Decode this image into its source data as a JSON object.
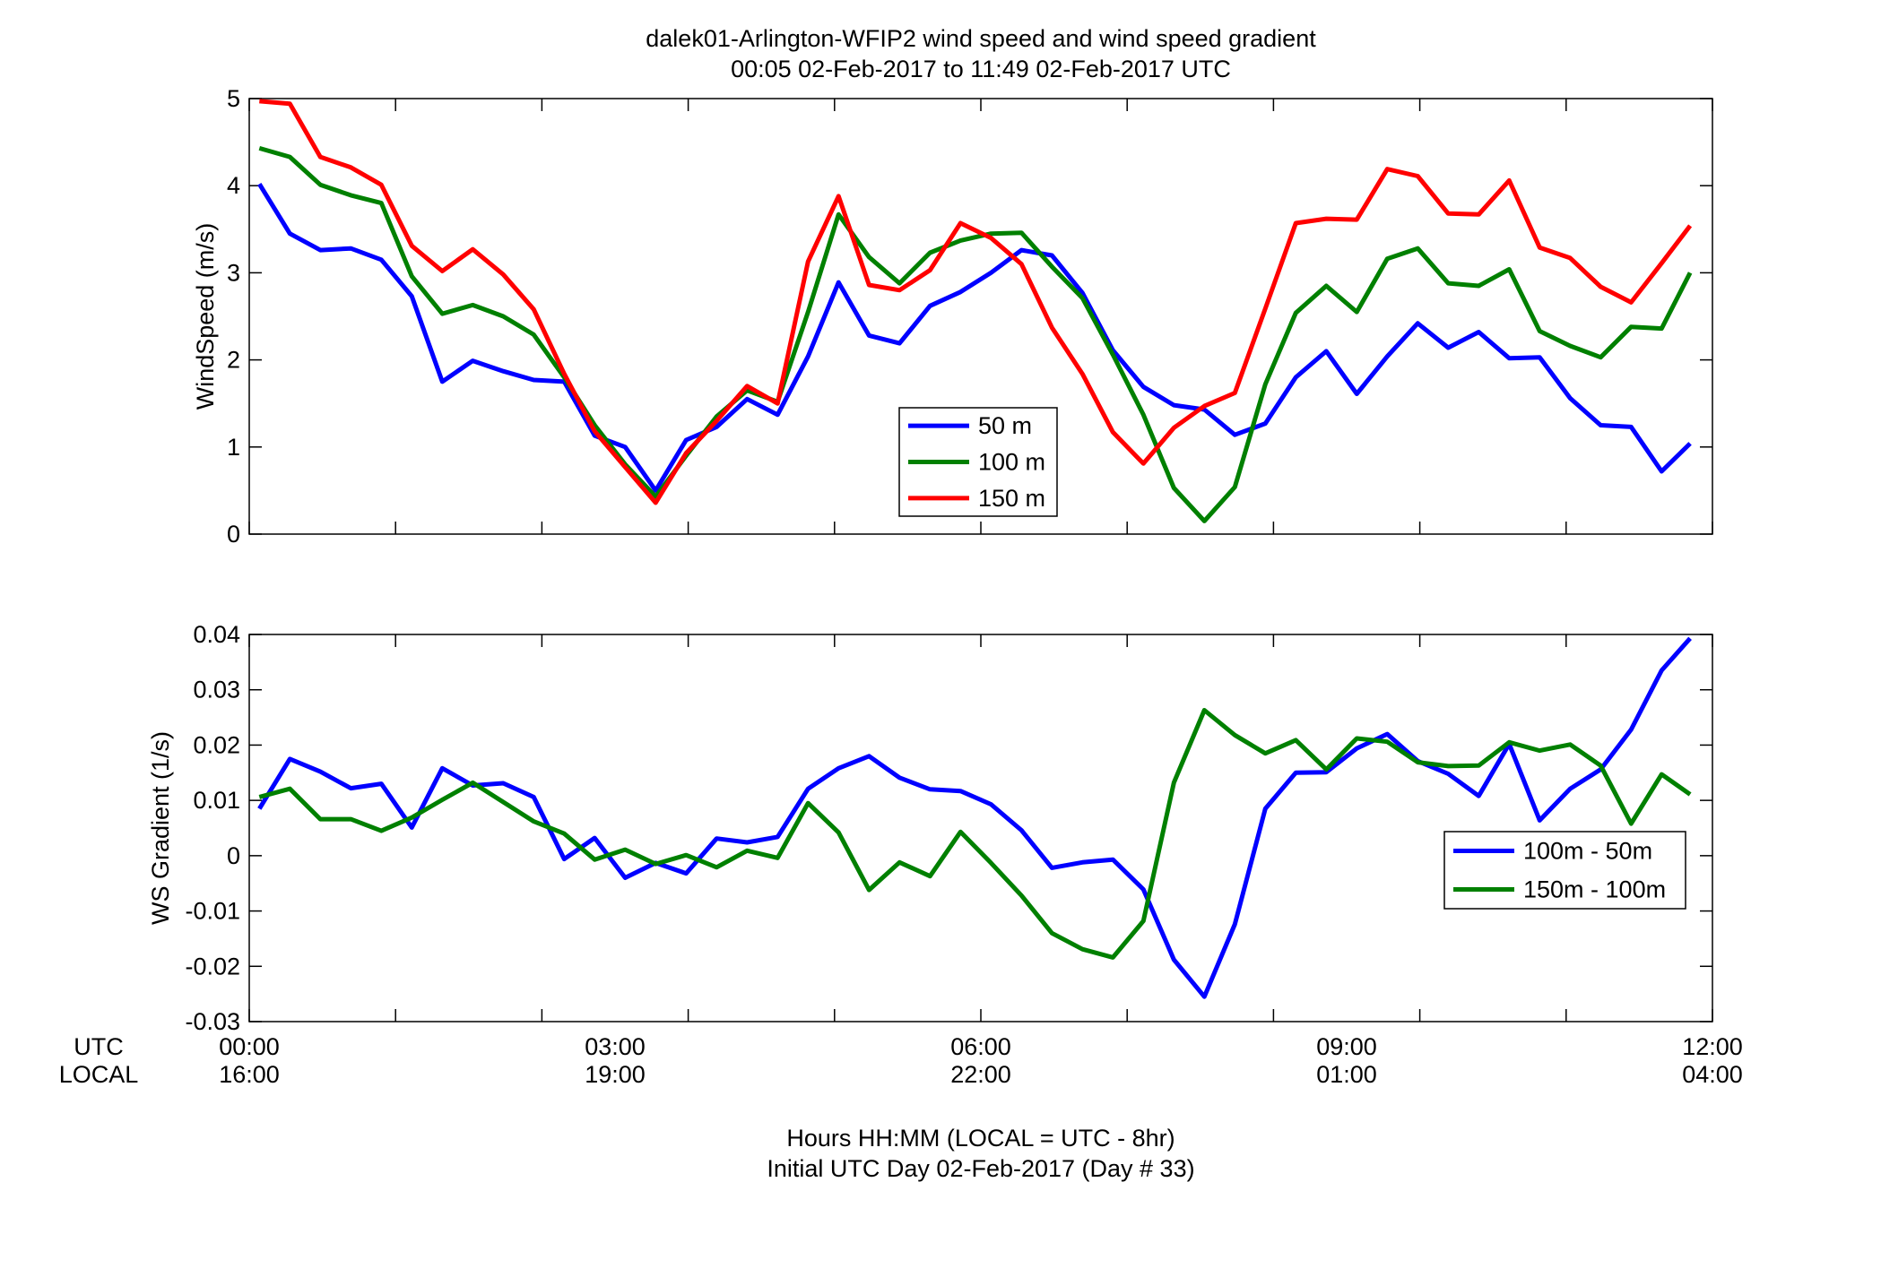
{
  "figure": {
    "title_line1": "dalek01-Arlington-WFIP2  wind speed and wind speed gradient",
    "title_line2": "00:05 02-Feb-2017 to 11:49 02-Feb-2017  UTC",
    "xlabel_line1": "Hours HH:MM  (LOCAL = UTC - 8hr)",
    "xlabel_line2": "Initial UTC Day 02-Feb-2017 (Day # 33)",
    "row_label_utc": "UTC",
    "row_label_local": "LOCAL",
    "x_ticks_utc": [
      "00:00",
      "03:00",
      "06:00",
      "09:00",
      "12:00"
    ],
    "x_ticks_local": [
      "16:00",
      "19:00",
      "22:00",
      "01:00",
      "04:00"
    ]
  },
  "chart_data": [
    {
      "type": "line",
      "ylabel": "WindSpeed (m/s)",
      "xlim": [
        0,
        12
      ],
      "ylim": [
        0,
        5
      ],
      "yticks": [
        0,
        1,
        2,
        3,
        4,
        5
      ],
      "xticks": [
        0,
        1.2,
        2.4,
        3.6,
        4.8,
        6,
        7.2,
        8.4,
        9.6,
        10.8,
        12
      ],
      "grid": false,
      "legend_position": "center",
      "x": [
        0.083,
        0.333,
        0.583,
        0.833,
        1.083,
        1.333,
        1.583,
        1.833,
        2.083,
        2.333,
        2.583,
        2.833,
        3.083,
        3.333,
        3.583,
        3.833,
        4.083,
        4.333,
        4.583,
        4.833,
        5.083,
        5.333,
        5.583,
        5.833,
        6.083,
        6.333,
        6.583,
        6.833,
        7.083,
        7.333,
        7.583,
        7.833,
        8.083,
        8.333,
        8.583,
        8.833,
        9.083,
        9.333,
        9.583,
        9.833,
        10.083,
        10.333,
        10.583,
        10.833,
        11.083,
        11.333,
        11.583,
        11.817
      ],
      "series": [
        {
          "name": "50 m",
          "color": "#0000ff",
          "values": [
            4.02,
            3.45,
            3.26,
            3.28,
            3.15,
            2.73,
            1.75,
            1.99,
            1.87,
            1.77,
            1.75,
            1.13,
            1.0,
            0.5,
            1.08,
            1.23,
            1.55,
            1.37,
            2.04,
            2.89,
            2.28,
            2.19,
            2.62,
            2.78,
            3.0,
            3.26,
            3.2,
            2.77,
            2.11,
            1.69,
            1.48,
            1.43,
            1.14,
            1.27,
            1.8,
            2.1,
            1.61,
            2.04,
            2.42,
            2.14,
            2.32,
            2.02,
            2.03,
            1.56,
            1.25,
            1.23,
            0.72,
            1.04
          ]
        },
        {
          "name": "100 m",
          "color": "#008000",
          "values": [
            4.43,
            4.33,
            4.01,
            3.89,
            3.8,
            2.96,
            2.53,
            2.63,
            2.5,
            2.29,
            1.8,
            1.25,
            0.8,
            0.43,
            0.9,
            1.35,
            1.65,
            1.52,
            2.55,
            3.67,
            3.18,
            2.88,
            3.23,
            3.37,
            3.45,
            3.46,
            3.07,
            2.71,
            2.06,
            1.37,
            0.53,
            0.15,
            0.54,
            1.72,
            2.54,
            2.85,
            2.55,
            3.16,
            3.28,
            2.88,
            2.85,
            3.04,
            2.33,
            2.16,
            2.03,
            2.38,
            2.36,
            3.0
          ]
        },
        {
          "name": "150 m",
          "color": "#ff0000",
          "values": [
            4.97,
            4.94,
            4.33,
            4.21,
            4.01,
            3.31,
            3.02,
            3.27,
            2.98,
            2.58,
            1.84,
            1.18,
            0.77,
            0.36,
            0.93,
            1.3,
            1.7,
            1.5,
            3.13,
            3.88,
            2.86,
            2.8,
            3.03,
            3.57,
            3.4,
            3.1,
            2.37,
            1.84,
            1.17,
            0.81,
            1.22,
            1.47,
            1.62,
            2.59,
            3.57,
            3.62,
            3.61,
            4.19,
            4.11,
            3.68,
            3.67,
            4.06,
            3.29,
            3.17,
            2.84,
            2.66,
            3.11,
            3.54
          ]
        }
      ]
    },
    {
      "type": "line",
      "ylabel": "WS Gradient (1/s)",
      "xlim": [
        0,
        12
      ],
      "ylim": [
        -0.03,
        0.04
      ],
      "yticks": [
        -0.03,
        -0.02,
        -0.01,
        0,
        0.01,
        0.02,
        0.03,
        0.04
      ],
      "ytick_labels": [
        "-0.03",
        "-0.02",
        "-0.01",
        "0",
        "0.01",
        "0.02",
        "0.03",
        "0.04"
      ],
      "xticks": [
        0,
        1.2,
        2.4,
        3.6,
        4.8,
        6,
        7.2,
        8.4,
        9.6,
        10.8,
        12
      ],
      "grid": false,
      "legend_position": "right",
      "x": [
        0.083,
        0.333,
        0.583,
        0.833,
        1.083,
        1.333,
        1.583,
        1.833,
        2.083,
        2.333,
        2.583,
        2.833,
        3.083,
        3.333,
        3.583,
        3.833,
        4.083,
        4.333,
        4.583,
        4.833,
        5.083,
        5.333,
        5.583,
        5.833,
        6.083,
        6.333,
        6.583,
        6.833,
        7.083,
        7.333,
        7.583,
        7.833,
        8.083,
        8.333,
        8.583,
        8.833,
        9.083,
        9.333,
        9.583,
        9.833,
        10.083,
        10.333,
        10.583,
        10.833,
        11.083,
        11.333,
        11.583,
        11.817
      ],
      "series": [
        {
          "name": "100m - 50m",
          "color": "#0000ff",
          "values": [
            0.0085,
            0.0175,
            0.0152,
            0.0122,
            0.013,
            0.0051,
            0.0158,
            0.0127,
            0.0131,
            0.0106,
            -0.0006,
            0.0032,
            -0.004,
            -0.0013,
            -0.0032,
            0.0031,
            0.0024,
            0.0034,
            0.0121,
            0.0158,
            0.018,
            0.0141,
            0.012,
            0.0117,
            0.0093,
            0.0046,
            -0.0022,
            -0.0012,
            -0.0007,
            -0.0061,
            -0.0188,
            -0.0255,
            -0.0124,
            0.0085,
            0.015,
            0.0151,
            0.0194,
            0.022,
            0.0171,
            0.0148,
            0.0108,
            0.0202,
            0.0064,
            0.0121,
            0.0156,
            0.0228,
            0.0335,
            0.0393
          ]
        },
        {
          "name": "150m - 100m",
          "color": "#008000",
          "values": [
            0.0106,
            0.0121,
            0.0066,
            0.0066,
            0.0045,
            0.0069,
            0.0101,
            0.0132,
            0.0097,
            0.0062,
            0.004,
            -0.0007,
            0.0011,
            -0.0015,
            0.0001,
            -0.0021,
            0.0009,
            -0.0004,
            0.0095,
            0.0042,
            -0.0062,
            -0.0012,
            -0.0037,
            0.0043,
            -0.0013,
            -0.0072,
            -0.014,
            -0.0169,
            -0.0184,
            -0.0118,
            0.0132,
            0.0263,
            0.0218,
            0.0185,
            0.0209,
            0.0156,
            0.0212,
            0.0206,
            0.0169,
            0.0162,
            0.0163,
            0.0205,
            0.019,
            0.0201,
            0.0163,
            0.0058,
            0.0147,
            0.0111
          ]
        }
      ]
    }
  ]
}
